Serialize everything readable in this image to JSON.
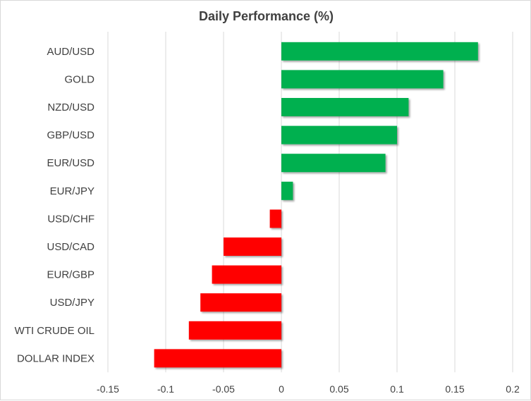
{
  "chart_data": {
    "type": "bar",
    "orientation": "horizontal",
    "title": "Daily Performance (%)",
    "xlabel": "",
    "ylabel": "",
    "categories": [
      "AUD/USD",
      "GOLD",
      "NZD/USD",
      "GBP/USD",
      "EUR/USD",
      "EUR/JPY",
      "USD/CHF",
      "USD/CAD",
      "EUR/GBP",
      "USD/JPY",
      "WTI CRUDE OIL",
      "DOLLAR INDEX"
    ],
    "values": [
      0.17,
      0.14,
      0.11,
      0.1,
      0.09,
      0.01,
      -0.01,
      -0.05,
      -0.06,
      -0.07,
      -0.08,
      -0.11
    ],
    "xlim": [
      -0.15,
      0.2
    ],
    "xticks": [
      "-0.15",
      "-0.1",
      "-0.05",
      "0",
      "0.05",
      "0.1",
      "0.15",
      "0.2"
    ],
    "grid": "vertical",
    "legend": "none",
    "colors": {
      "positive": "#00b050",
      "negative": "#ff0000",
      "grid": "#d9d9d9",
      "text": "#404040"
    }
  }
}
